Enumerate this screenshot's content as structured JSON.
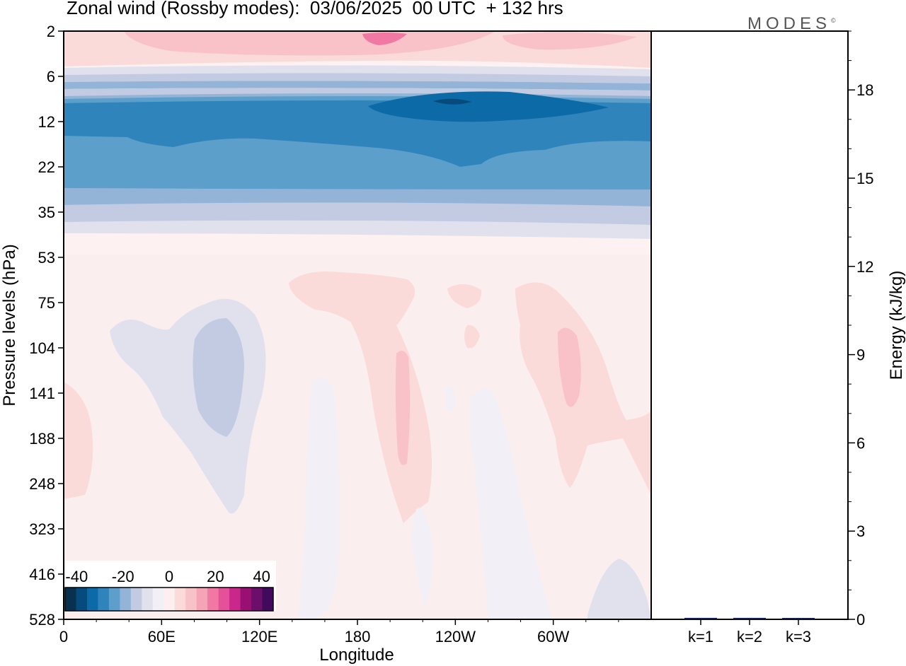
{
  "header": {
    "title": "Zonal wind (Rossby modes):  03/06/2025  00 UTC  + 132 hrs",
    "brand": "MODES",
    "brand_mark": "©"
  },
  "colors": {
    "palette": [
      "#0a3050",
      "#074a7c",
      "#0c6aa6",
      "#2f84bc",
      "#5c9fcb",
      "#93b4d6",
      "#c3cbe2",
      "#e1e1ee",
      "#f3eff7",
      "#fdefef",
      "#fbdada",
      "#f9c2c9",
      "#f5a3b6",
      "#f178a2",
      "#e4519a",
      "#c92789",
      "#9a0f74",
      "#6c0f6a",
      "#420a5c"
    ],
    "bar": "#0c1a5a"
  },
  "chart_data": [
    {
      "type": "heatmap",
      "subtype": "filled-contour",
      "title": "",
      "xlabel": "Longitude",
      "ylabel": "Pressure levels (hPa)",
      "x_ticks": [
        "0",
        "60E",
        "120E",
        "180",
        "120W",
        "60W"
      ],
      "x_range": [
        0,
        360
      ],
      "y_ticks": [
        "2",
        "6",
        "12",
        "22",
        "35",
        "53",
        "75",
        "104",
        "141",
        "188",
        "248",
        "323",
        "416",
        "528"
      ],
      "y_range": [
        2,
        528
      ],
      "colorbar": {
        "ticks": [
          "-40",
          "-20",
          "0",
          "20",
          "40"
        ],
        "min": -45,
        "max": 45,
        "step": 5
      },
      "features": [
        {
          "levels": "6-35",
          "type": "easterly",
          "min_value": -37.5
        },
        {
          "levels": "2-5",
          "type": "westerly",
          "max_value": 17.5
        },
        {
          "levels": "53-528",
          "type": "mixed",
          "min_value": -7.5,
          "max_value": 7.5
        }
      ]
    },
    {
      "type": "bar",
      "ylabel": "Energy (kJ/kg)",
      "categories": [
        "k=1",
        "k=2",
        "k=3"
      ],
      "values": [
        0.05,
        0.05,
        0.03
      ],
      "ylim": [
        0,
        20
      ],
      "y_ticks": [
        "0",
        "3",
        "6",
        "9",
        "12",
        "15",
        "18"
      ]
    }
  ]
}
